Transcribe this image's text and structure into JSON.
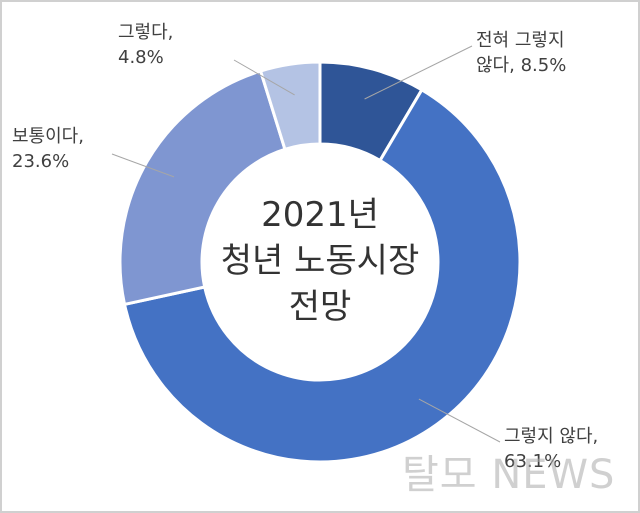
{
  "chart_data": {
    "type": "pie",
    "title": "2021년 청년 노동시장 전망",
    "title_lines": [
      "2021년",
      "청년 노동시장",
      "전망"
    ],
    "categories": [
      "전혀 그렇지 않다",
      "그렇지 않다",
      "보통이다",
      "그렇다"
    ],
    "values": [
      8.5,
      63.1,
      23.6,
      4.8
    ],
    "label_lines": [
      [
        "전혀 그렇지",
        "않다, 8.5%"
      ],
      [
        "그렇지 않다,",
        "63.1%"
      ],
      [
        "보통이다,",
        "23.6%"
      ],
      [
        "그렇다,",
        "4.8%"
      ]
    ],
    "colors": [
      "#2f5597",
      "#4472c4",
      "#7f96d1",
      "#b4c3e4"
    ],
    "donut": true
  },
  "watermark": "탈모 NEWS"
}
